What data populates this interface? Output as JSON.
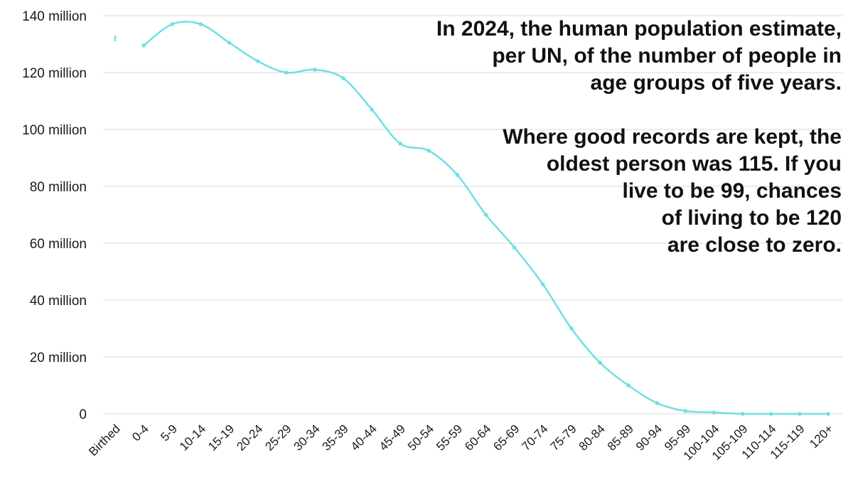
{
  "chart_data": {
    "type": "line",
    "title": "",
    "xlabel": "",
    "ylabel": "",
    "ylim": [
      0,
      140000000
    ],
    "grid": true,
    "legend": "none",
    "smooth": true,
    "color": "#6ee0e3",
    "y_ticks": [
      {
        "value": 0,
        "label": "0"
      },
      {
        "value": 20000000,
        "label": "20 million"
      },
      {
        "value": 40000000,
        "label": "40 million"
      },
      {
        "value": 60000000,
        "label": "60 million"
      },
      {
        "value": 80000000,
        "label": "80 million"
      },
      {
        "value": 100000000,
        "label": "100 million"
      },
      {
        "value": 120000000,
        "label": "120 million"
      },
      {
        "value": 140000000,
        "label": "140 million"
      }
    ],
    "categories": [
      "Birthed",
      "0-4",
      "5-9",
      "10-14",
      "15-19",
      "20-24",
      "25-29",
      "30-34",
      "35-39",
      "40-44",
      "45-49",
      "50-54",
      "55-59",
      "60-64",
      "65-69",
      "70-74",
      "75-79",
      "80-84",
      "85-89",
      "90-94",
      "95-99",
      "100-104",
      "105-109",
      "110-114",
      "115-119",
      "120+"
    ],
    "values": [
      132000000,
      129500000,
      137000000,
      137000000,
      130500000,
      124000000,
      120000000,
      121000000,
      118000000,
      107000000,
      95000000,
      92500000,
      84000000,
      70000000,
      58500000,
      45500000,
      30000000,
      18000000,
      10000000,
      3800000,
      1000000,
      500000,
      0,
      0,
      0,
      0
    ],
    "annotation": {
      "paragraph_1": "In 2024, the human population estimate,\nper UN, of the number of people in\nage groups of five years.",
      "paragraph_2": "Where good records are kept, the\noldest person was 115. If you\nlive to be 99, chances\nof living to be 120\nare close to zero."
    }
  }
}
